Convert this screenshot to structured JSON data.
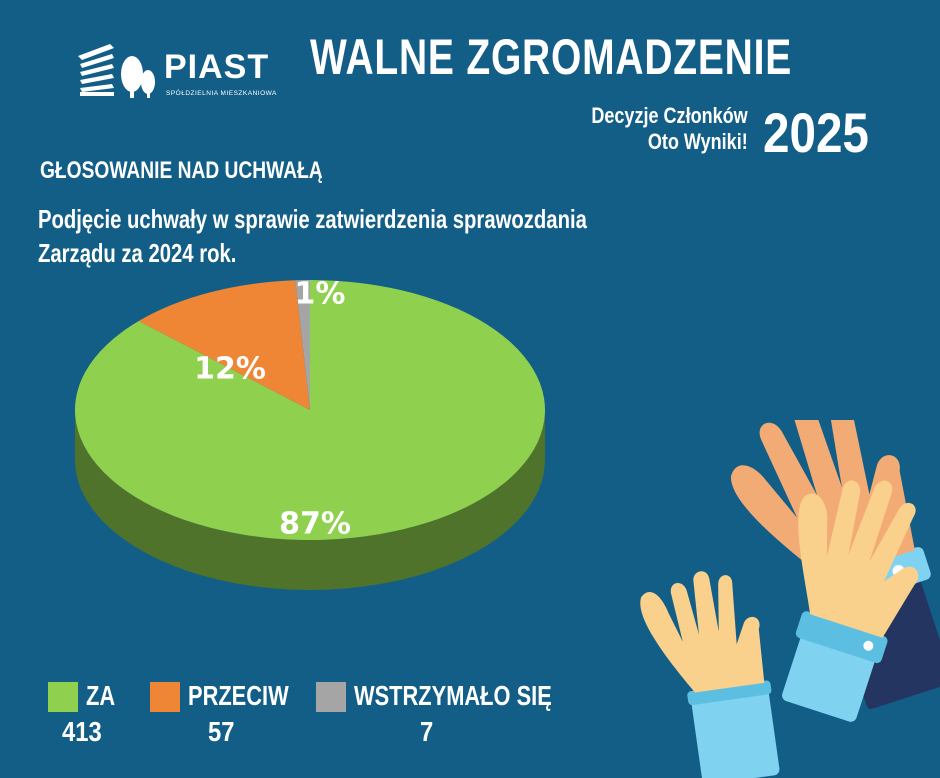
{
  "logo": {
    "name": "PIAST",
    "subtitle": "SPÓŁDZIELNIA MIESZKANIOWA"
  },
  "header": {
    "title": "WALNE ZGROMADZENIE",
    "subtitle_line1": "Decyzje Członków",
    "subtitle_line2": "Oto Wyniki!",
    "year": "2025"
  },
  "section_heading": "GŁOSOWANIE NAD UCHWAŁĄ",
  "question_line1": "Podjęcie uchwały w sprawie zatwierdzenia sprawozdania",
  "question_line2": "Zarządu za 2024 rok.",
  "colors": {
    "background": "#135e86",
    "za": "#8fd14f",
    "przeciw": "#ef8636",
    "wstrzymalo": "#a5a5a5"
  },
  "chart_data": {
    "type": "pie",
    "title": "",
    "slices": [
      {
        "label": "ZA",
        "value": 87,
        "count": 413,
        "color": "#8fd14f",
        "label_text": "87%"
      },
      {
        "label": "PRZECIW",
        "value": 12,
        "count": 57,
        "color": "#ef8636",
        "label_text": "12%"
      },
      {
        "label": "WSTRZYMAŁO SIĘ",
        "value": 1,
        "count": 7,
        "color": "#a5a5a5",
        "label_text": "1%"
      }
    ]
  },
  "legend": [
    {
      "label": "ZA",
      "count": "413"
    },
    {
      "label": "PRZECIW",
      "count": "57"
    },
    {
      "label": "WSTRZYMAŁO SIĘ",
      "count": "7"
    }
  ]
}
